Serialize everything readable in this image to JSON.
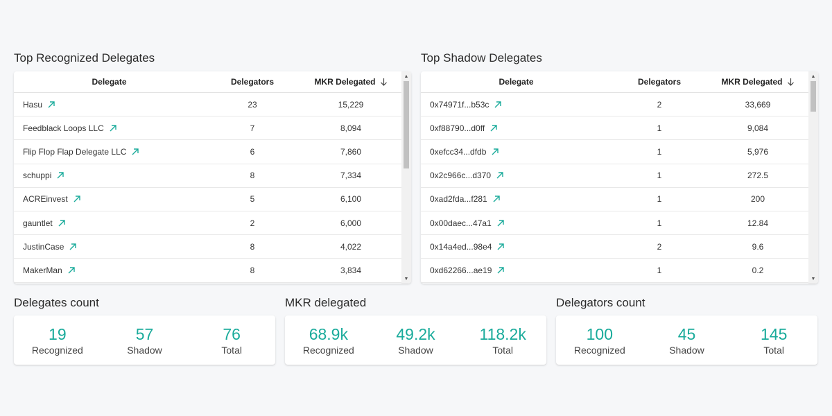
{
  "colors": {
    "accent": "#1aab9b",
    "background": "#f6f7f9"
  },
  "recognized": {
    "title": "Top Recognized Delegates",
    "columns": {
      "delegate": "Delegate",
      "delegators": "Delegators",
      "mkr": "MKR Delegated"
    },
    "rows": [
      {
        "name": "Hasu",
        "delegators": "23",
        "mkr": "15,229"
      },
      {
        "name": "Feedblack Loops LLC",
        "delegators": "7",
        "mkr": "8,094"
      },
      {
        "name": "Flip Flop Flap Delegate LLC",
        "delegators": "6",
        "mkr": "7,860"
      },
      {
        "name": "schuppi",
        "delegators": "8",
        "mkr": "7,334"
      },
      {
        "name": "ACREinvest",
        "delegators": "5",
        "mkr": "6,100"
      },
      {
        "name": "gauntlet",
        "delegators": "2",
        "mkr": "6,000"
      },
      {
        "name": "JustinCase",
        "delegators": "8",
        "mkr": "4,022"
      },
      {
        "name": "MakerMan",
        "delegators": "8",
        "mkr": "3,834"
      }
    ]
  },
  "shadow": {
    "title": "Top Shadow Delegates",
    "columns": {
      "delegate": "Delegate",
      "delegators": "Delegators",
      "mkr": "MKR Delegated"
    },
    "rows": [
      {
        "name": "0x74971f...b53c",
        "delegators": "2",
        "mkr": "33,669"
      },
      {
        "name": "0xf88790...d0ff",
        "delegators": "1",
        "mkr": "9,084"
      },
      {
        "name": "0xefcc34...dfdb",
        "delegators": "1",
        "mkr": "5,976"
      },
      {
        "name": "0x2c966c...d370",
        "delegators": "1",
        "mkr": "272.5"
      },
      {
        "name": "0xad2fda...f281",
        "delegators": "1",
        "mkr": "200"
      },
      {
        "name": "0x00daec...47a1",
        "delegators": "1",
        "mkr": "12.84"
      },
      {
        "name": "0x14a4ed...98e4",
        "delegators": "2",
        "mkr": "9.6"
      },
      {
        "name": "0xd62266...ae19",
        "delegators": "1",
        "mkr": "0.2"
      }
    ]
  },
  "stats": [
    {
      "title": "Delegates count",
      "items": [
        {
          "value": "19",
          "label": "Recognized"
        },
        {
          "value": "57",
          "label": "Shadow"
        },
        {
          "value": "76",
          "label": "Total"
        }
      ]
    },
    {
      "title": "MKR delegated",
      "items": [
        {
          "value": "68.9k",
          "label": "Recognized"
        },
        {
          "value": "49.2k",
          "label": "Shadow"
        },
        {
          "value": "118.2k",
          "label": "Total"
        }
      ]
    },
    {
      "title": "Delegators count",
      "items": [
        {
          "value": "100",
          "label": "Recognized"
        },
        {
          "value": "45",
          "label": "Shadow"
        },
        {
          "value": "145",
          "label": "Total"
        }
      ]
    }
  ]
}
